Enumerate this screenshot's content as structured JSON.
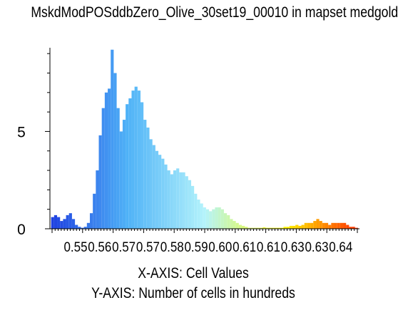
{
  "chart_data": {
    "type": "bar",
    "title": "MskdModPOSddbZero_Olive_30set19_00010 in mapset medgold",
    "xlabel": "X-AXIS: Cell Values",
    "ylabel": "Y-AXIS: Number of cells in hundreds",
    "x_tick_labels": [
      "0.55",
      "0.56",
      "0.57",
      "0.57",
      "0.58",
      "0.59",
      "0.60",
      "0.61",
      "0.61",
      "0.63",
      "0.63",
      "0.64"
    ],
    "y_tick_labels": [
      "0",
      "5"
    ],
    "xlim": [
      0.5436,
      0.6475
    ],
    "ylim": [
      0,
      9.3
    ],
    "x": [
      0.5445,
      0.5455,
      0.5465,
      0.5475,
      0.5485,
      0.5495,
      0.5505,
      0.5515,
      0.5525,
      0.5535,
      0.5545,
      0.5555,
      0.5565,
      0.5575,
      0.5585,
      0.5595,
      0.5605,
      0.5615,
      0.5625,
      0.5635,
      0.5645,
      0.5655,
      0.5665,
      0.5675,
      0.5685,
      0.5695,
      0.5705,
      0.5715,
      0.5725,
      0.5735,
      0.5745,
      0.5755,
      0.5765,
      0.5775,
      0.5785,
      0.5795,
      0.5805,
      0.5815,
      0.5825,
      0.5835,
      0.5845,
      0.5855,
      0.5865,
      0.5875,
      0.5885,
      0.5895,
      0.5905,
      0.5915,
      0.5925,
      0.5935,
      0.5945,
      0.5955,
      0.5965,
      0.5975,
      0.5985,
      0.5995,
      0.6005,
      0.6015,
      0.6025,
      0.6035,
      0.6045,
      0.6055,
      0.6065,
      0.6075,
      0.6085,
      0.6095,
      0.6105,
      0.6115,
      0.6125,
      0.6135,
      0.6145,
      0.6155,
      0.6165,
      0.6175,
      0.6185,
      0.6195,
      0.6205,
      0.6215,
      0.6225,
      0.6235,
      0.6245,
      0.6255,
      0.6265,
      0.6275,
      0.6285,
      0.6295,
      0.6305,
      0.6315,
      0.6325,
      0.6335,
      0.6345,
      0.6355,
      0.6365,
      0.6375,
      0.6385,
      0.6395,
      0.6405,
      0.6415,
      0.6425,
      0.6435,
      0.6445,
      0.6455,
      0.6465
    ],
    "values": [
      0.6,
      0.7,
      0.6,
      0.4,
      0.5,
      0.7,
      0.8,
      0.5,
      0.2,
      0.1,
      0.05,
      0.1,
      0.3,
      0.8,
      1.8,
      3.0,
      4.8,
      6.2,
      7.0,
      7.2,
      9.2,
      8.0,
      6.2,
      5.0,
      5.6,
      6.4,
      6.7,
      7.1,
      7.3,
      7.1,
      6.5,
      5.6,
      5.2,
      4.6,
      4.3,
      4.0,
      3.8,
      3.6,
      3.3,
      3.0,
      2.8,
      3.0,
      3.1,
      2.9,
      2.9,
      2.7,
      2.5,
      2.2,
      1.8,
      1.5,
      1.3,
      1.1,
      1.0,
      0.9,
      1.0,
      1.1,
      1.1,
      1.0,
      0.8,
      0.7,
      0.5,
      0.4,
      0.3,
      0.2,
      0.15,
      0.1,
      0.05,
      0.05,
      0.05,
      0.05,
      0.05,
      0.08,
      0.05,
      0.05,
      0.05,
      0.05,
      0.05,
      0.05,
      0.1,
      0.1,
      0.15,
      0.15,
      0.2,
      0.15,
      0.2,
      0.3,
      0.3,
      0.3,
      0.4,
      0.5,
      0.4,
      0.3,
      0.3,
      0.2,
      0.3,
      0.3,
      0.3,
      0.3,
      0.3,
      0.2,
      0.1,
      0.1,
      0.05
    ],
    "grid": false,
    "colormap": [
      "#1d3ee0",
      "#4fb2f7",
      "#b4f3fb",
      "#ffff00",
      "#ff2a00"
    ]
  }
}
